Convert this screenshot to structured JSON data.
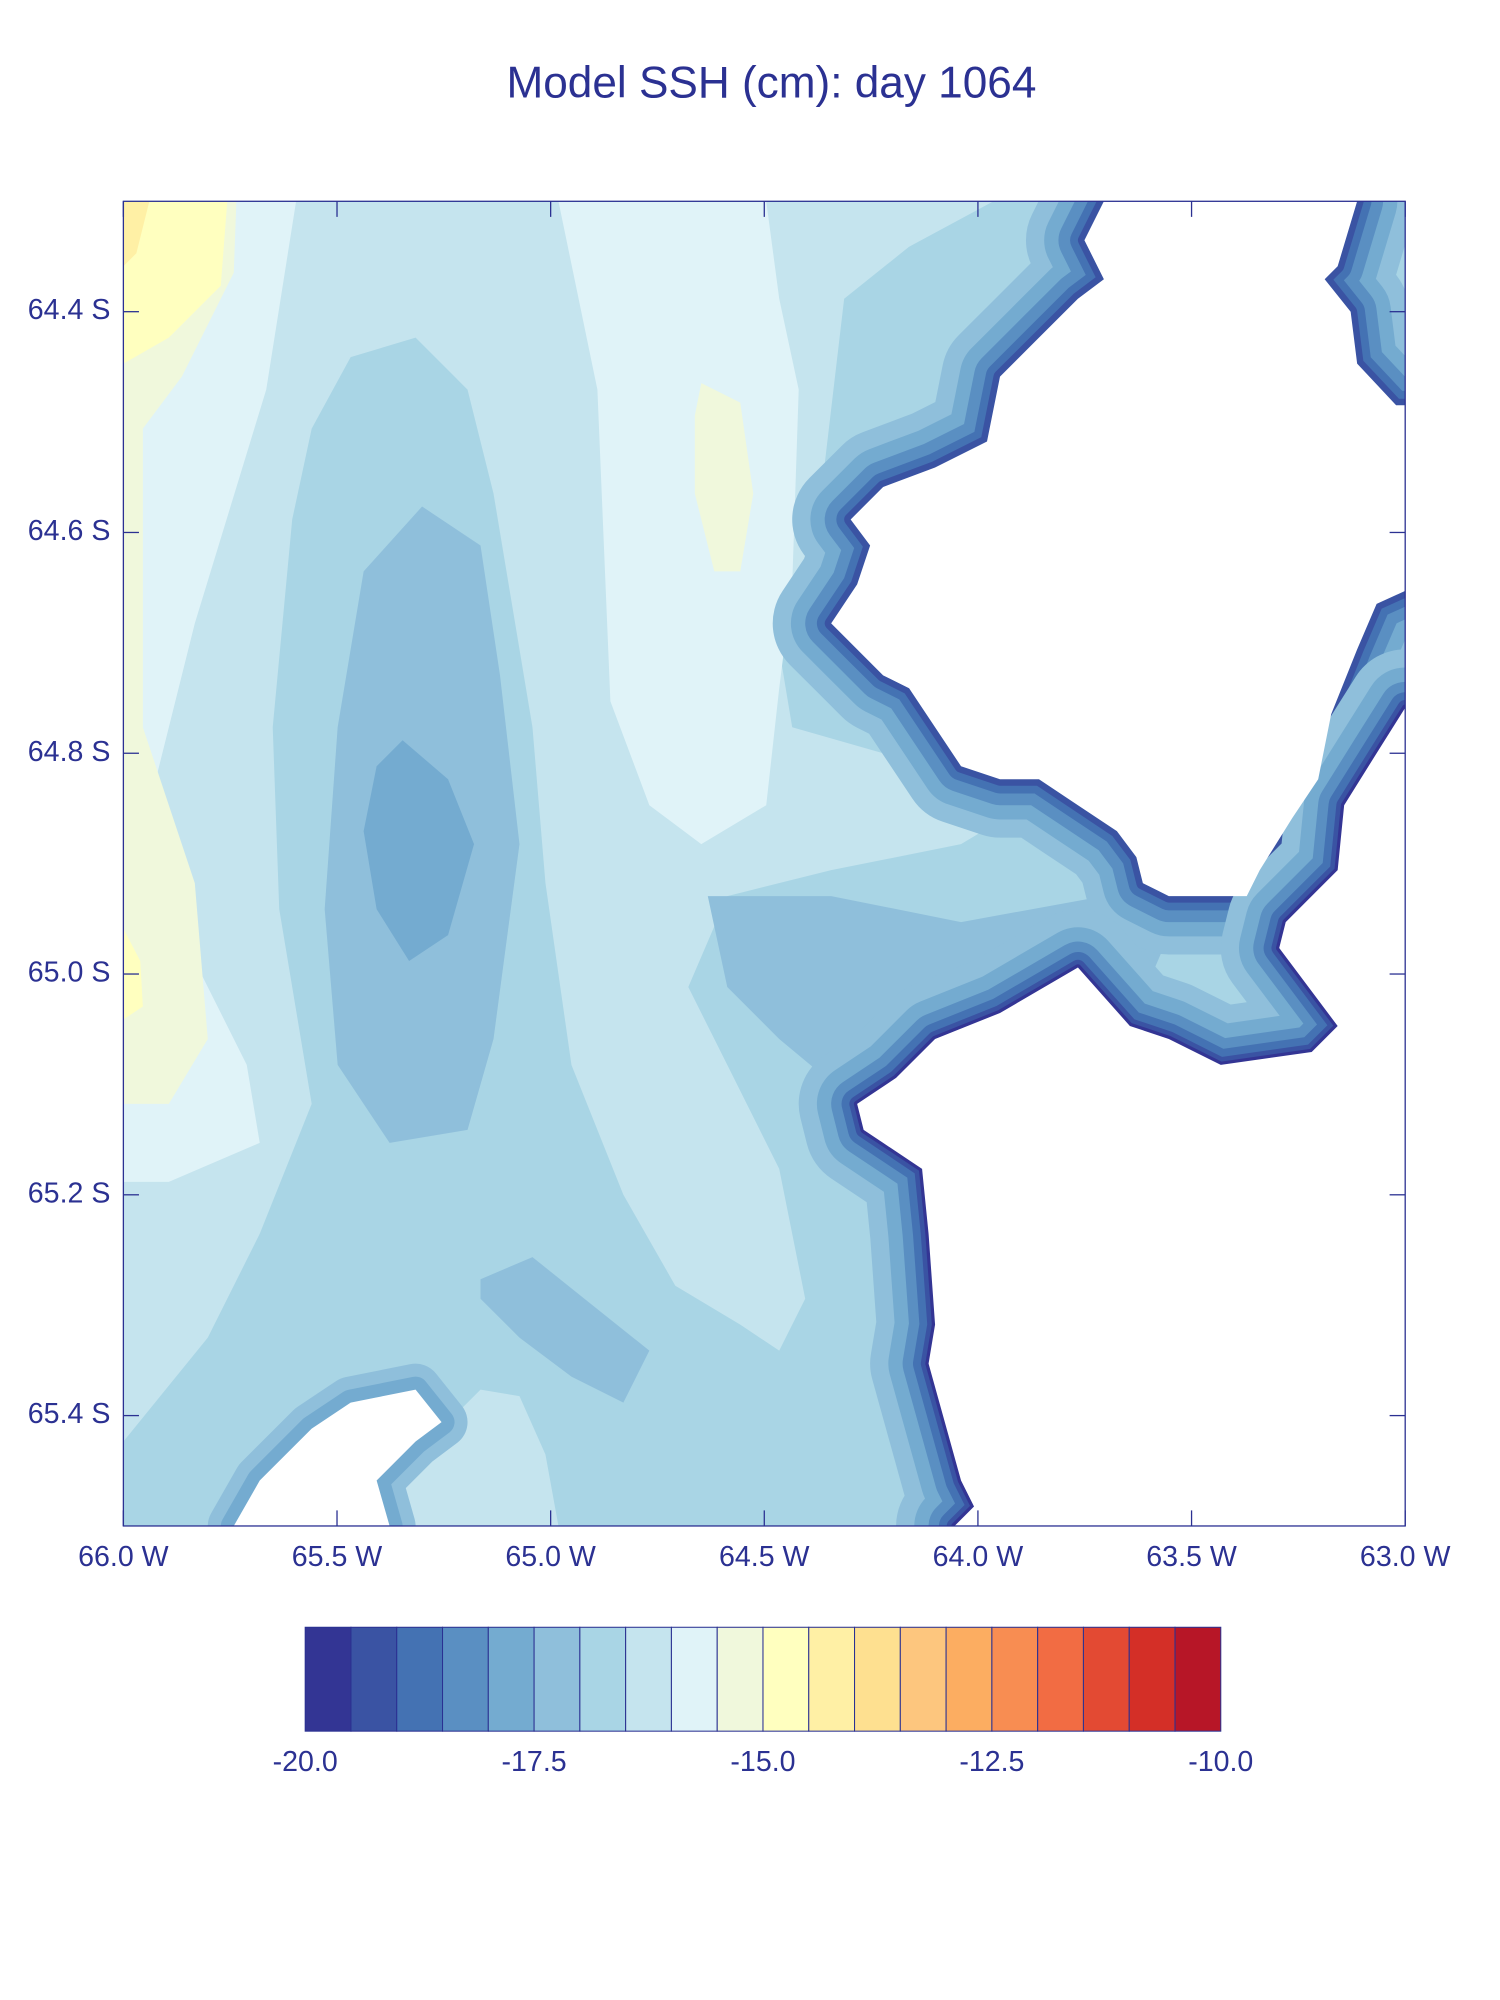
{
  "chart_data": {
    "type": "contour",
    "title": "Model SSH (cm): day 1064",
    "xlim": [
      -66.0,
      -63.0
    ],
    "ylim": [
      -65.5,
      -64.3
    ],
    "xticks": [
      {
        "value": -66.0,
        "label": "66.0 W"
      },
      {
        "value": -65.5,
        "label": "65.5 W"
      },
      {
        "value": -65.0,
        "label": "65.0 W"
      },
      {
        "value": -64.5,
        "label": "64.5 W"
      },
      {
        "value": -64.0,
        "label": "64.0 W"
      },
      {
        "value": -63.5,
        "label": "63.5 W"
      },
      {
        "value": -63.0,
        "label": "63.0 W"
      }
    ],
    "yticks": [
      {
        "value": -64.4,
        "label": "64.4 S"
      },
      {
        "value": -64.6,
        "label": "64.6 S"
      },
      {
        "value": -64.8,
        "label": "64.8 S"
      },
      {
        "value": -65.0,
        "label": "65.0 S"
      },
      {
        "value": -65.2,
        "label": "65.2 S"
      },
      {
        "value": -65.4,
        "label": "65.4 S"
      }
    ],
    "levels": [
      -20.0,
      -19.5,
      -19.0,
      -18.5,
      -18.0,
      -17.5,
      -17.0,
      -16.5,
      -16.0,
      -15.5,
      -15.0,
      -14.5,
      -14.0,
      -13.5,
      -13.0,
      -12.5,
      -12.0,
      -11.5,
      -11.0,
      -10.5,
      -10.0
    ],
    "colors": [
      "#333594",
      "#3a53a3",
      "#4472b3",
      "#5a8fc2",
      "#74abd0",
      "#8fbfdb",
      "#a9d5e5",
      "#c5e4ee",
      "#e0f3f8",
      "#f0f8dc",
      "#ffffbf",
      "#fff0a5",
      "#fee090",
      "#fdc67e",
      "#fcad61",
      "#f88d52",
      "#f26c43",
      "#e34a33",
      "#d42f27",
      "#b71627"
    ],
    "colorbar_ticks": [
      {
        "value": -20.0,
        "label": "-20.0"
      },
      -17.5,
      {
        "value": -15.0,
        "label": "-15.0"
      },
      -12.5,
      {
        "value": -10.0,
        "label": "-10.0"
      }
    ]
  }
}
